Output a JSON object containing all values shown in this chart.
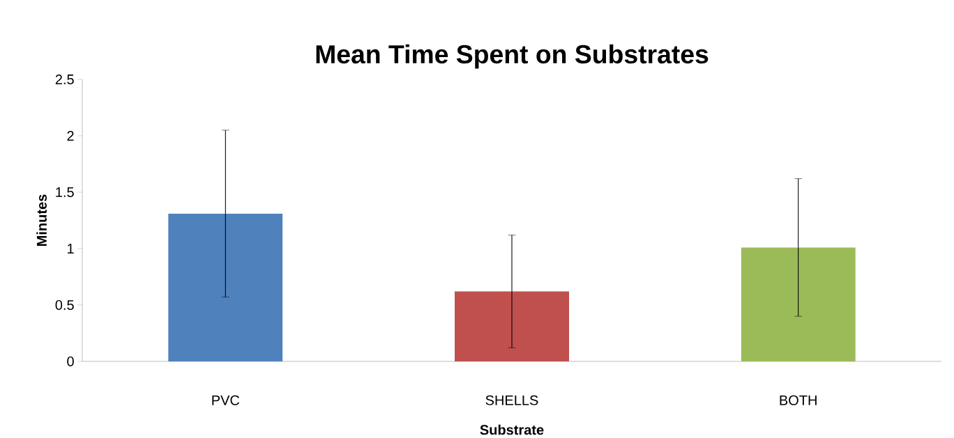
{
  "chart_data": {
    "type": "bar",
    "title": "Mean Time Spent on Substrates",
    "xlabel": "Substrate",
    "ylabel": "Minutes",
    "categories": [
      "PVC",
      "SHELLS",
      "BOTH"
    ],
    "values": [
      1.31,
      0.62,
      1.01
    ],
    "errors": [
      0.74,
      0.5,
      0.61
    ],
    "colors": [
      "#4f81bd",
      "#c0504d",
      "#9bbb59"
    ],
    "ylim": [
      0,
      2.5
    ],
    "yticks": [
      0,
      0.5,
      1,
      1.5,
      2,
      2.5
    ],
    "grid": false
  }
}
